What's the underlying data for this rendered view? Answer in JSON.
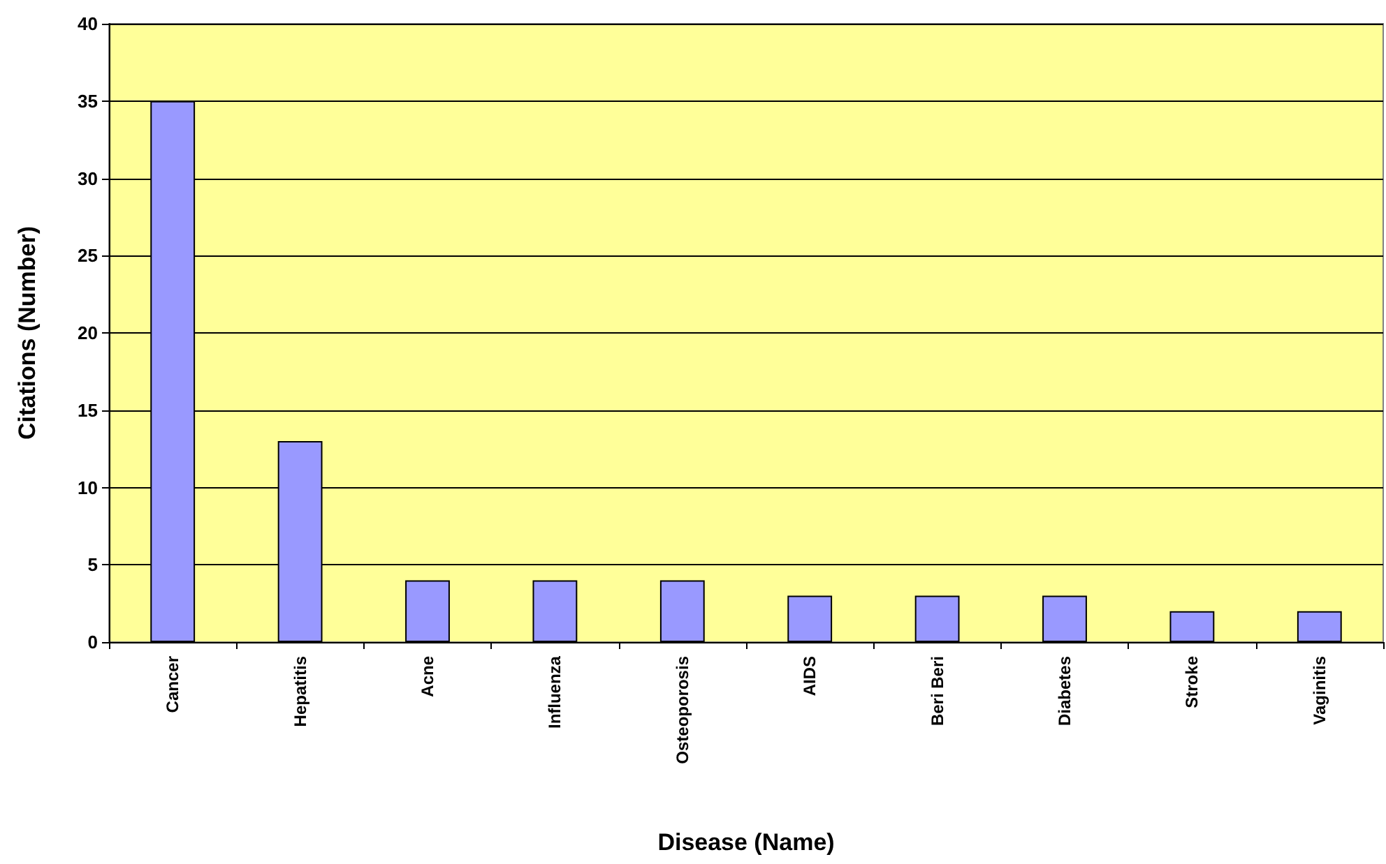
{
  "chart_data": {
    "type": "bar",
    "xlabel": "Disease (Name)",
    "ylabel": "Citations (Number)",
    "categories": [
      "Cancer",
      "Hepatitis",
      "Acne",
      "Influenza",
      "Osteoporosis",
      "AIDS",
      "Beri Beri",
      "Diabetes",
      "Stroke",
      "Vaginitis"
    ],
    "values": [
      35,
      13,
      4,
      4,
      4,
      3,
      3,
      3,
      2,
      2
    ],
    "color": "#9999ff",
    "ylim": [
      0,
      40
    ],
    "yticks": [
      0,
      5,
      10,
      15,
      20,
      25,
      30,
      35,
      40
    ],
    "grid": "y"
  }
}
